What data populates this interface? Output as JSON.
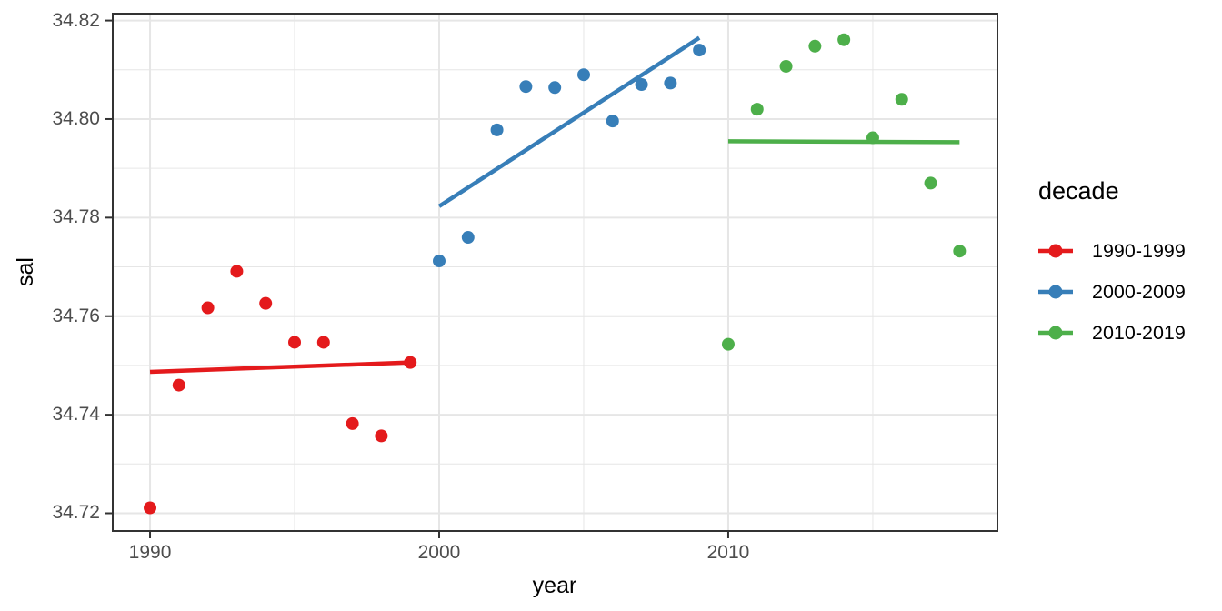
{
  "legend": {
    "title": "decade",
    "entries": [
      {
        "label": "1990-1999",
        "color": "#E41A1C"
      },
      {
        "label": "2000-2009",
        "color": "#377EB8"
      },
      {
        "label": "2010-2019",
        "color": "#4DAF4A"
      }
    ]
  },
  "chart_data": {
    "type": "scatter",
    "title": "",
    "xlabel": "year",
    "ylabel": "sal",
    "xlim": [
      1988.71,
      2019.31
    ],
    "ylim": [
      34.7164,
      34.8214
    ],
    "grid": true,
    "legend_title": "decade",
    "legend_position": "right",
    "x_ticks": [
      {
        "label": "1990",
        "value": 1990
      },
      {
        "label": "2000",
        "value": 2000
      },
      {
        "label": "2010",
        "value": 2010
      }
    ],
    "y_ticks": [
      {
        "label": "34.72",
        "value": 34.72
      },
      {
        "label": "34.74",
        "value": 34.74
      },
      {
        "label": "34.76",
        "value": 34.76
      },
      {
        "label": "34.78",
        "value": 34.78
      },
      {
        "label": "34.80",
        "value": 34.8
      },
      {
        "label": "34.82",
        "value": 34.82
      }
    ],
    "x_minor": [
      1995,
      2005,
      2015
    ],
    "y_minor": [
      34.73,
      34.75,
      34.77,
      34.79,
      34.81
    ],
    "series": [
      {
        "name": "1990-1999",
        "color": "#E41A1C",
        "points": [
          [
            1990,
            34.7211
          ],
          [
            1991,
            34.746
          ],
          [
            1992,
            34.7617
          ],
          [
            1993,
            34.7691
          ],
          [
            1994,
            34.7626
          ],
          [
            1995,
            34.7547
          ],
          [
            1996,
            34.7547
          ],
          [
            1997,
            34.7382
          ],
          [
            1998,
            34.7357
          ],
          [
            1999,
            34.7506
          ]
        ],
        "trend": [
          [
            1990,
            34.7487
          ],
          [
            1999,
            34.7506
          ]
        ]
      },
      {
        "name": "2000-2009",
        "color": "#377EB8",
        "points": [
          [
            2000,
            34.7712
          ],
          [
            2001,
            34.776
          ],
          [
            2002,
            34.7978
          ],
          [
            2003,
            34.8066
          ],
          [
            2004,
            34.8064
          ],
          [
            2005,
            34.809
          ],
          [
            2006,
            34.7996
          ],
          [
            2007,
            34.807
          ],
          [
            2008,
            34.8073
          ],
          [
            2009,
            34.814
          ]
        ],
        "trend": [
          [
            2000,
            34.7823
          ],
          [
            2009,
            34.8165
          ]
        ]
      },
      {
        "name": "2010-2019",
        "color": "#4DAF4A",
        "points": [
          [
            2010,
            34.7543
          ],
          [
            2011,
            34.802
          ],
          [
            2012,
            34.8107
          ],
          [
            2013,
            34.8148
          ],
          [
            2014,
            34.8161
          ],
          [
            2015,
            34.7962
          ],
          [
            2016,
            34.804
          ],
          [
            2017,
            34.787
          ],
          [
            2018,
            34.7732
          ]
        ],
        "trend": [
          [
            2010,
            34.7955
          ],
          [
            2018,
            34.7953
          ]
        ]
      }
    ],
    "style": {
      "grid_color": "#E6E6E6",
      "border_color": "#333333",
      "tick_color": "#333333",
      "tick_label_color": "#4d4d4d",
      "point_radius": 7,
      "trend_width": 4.5
    }
  }
}
